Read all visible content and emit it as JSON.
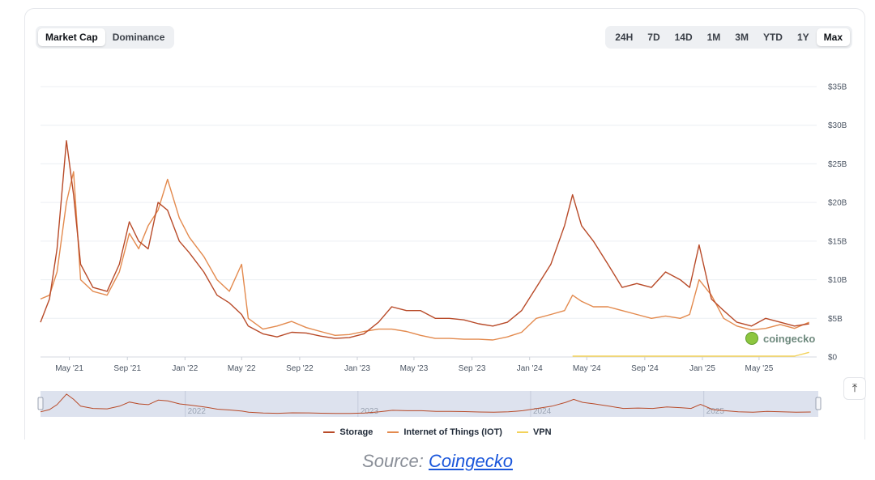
{
  "toggle": {
    "options": [
      "Market Cap",
      "Dominance"
    ],
    "active": "Market Cap"
  },
  "ranges": {
    "options": [
      "24H",
      "7D",
      "14D",
      "1M",
      "3M",
      "YTD",
      "1Y",
      "Max"
    ],
    "active": "Max"
  },
  "watermark": "coingecko",
  "source": {
    "prefix": "Source: ",
    "link": "Coingecko"
  },
  "colors": {
    "storage": "#b84a28",
    "iot": "#e38a4e",
    "vpn": "#f3d25a",
    "grid": "#eceff3",
    "navigator_bg": "#dde2ee"
  },
  "icons": {
    "scroll_top": "arrow-up-to-line-icon",
    "watermark_logo": "gecko-icon"
  },
  "chart_data": {
    "type": "line",
    "title": "",
    "xlabel": "",
    "ylabel": "",
    "ylim": [
      0,
      35
    ],
    "y_unit": "B USD",
    "yticks": [
      "$0",
      "$5B",
      "$10B",
      "$15B",
      "$20B",
      "$25B",
      "$30B",
      "$35B"
    ],
    "xticks": [
      "May '21",
      "Sep '21",
      "Jan '22",
      "May '22",
      "Sep '22",
      "Jan '23",
      "May '23",
      "Sep '23",
      "Jan '24",
      "May '24",
      "Sep '24",
      "Jan '25",
      "May '25"
    ],
    "navigator_years": [
      "2022",
      "2023",
      "2024",
      "2025"
    ],
    "legend_position": "bottom",
    "grid": true,
    "x": [
      "2021-03-01",
      "2021-03-20",
      "2021-04-05",
      "2021-04-25",
      "2021-05-10",
      "2021-05-25",
      "2021-06-20",
      "2021-07-20",
      "2021-08-15",
      "2021-09-05",
      "2021-09-25",
      "2021-10-15",
      "2021-11-05",
      "2021-11-25",
      "2021-12-20",
      "2022-01-10",
      "2022-02-10",
      "2022-03-10",
      "2022-04-05",
      "2022-05-01",
      "2022-05-15",
      "2022-06-15",
      "2022-07-15",
      "2022-08-15",
      "2022-09-15",
      "2022-10-15",
      "2022-11-15",
      "2022-12-15",
      "2023-01-15",
      "2023-02-15",
      "2023-03-15",
      "2023-04-15",
      "2023-05-15",
      "2023-06-15",
      "2023-07-15",
      "2023-08-15",
      "2023-09-15",
      "2023-10-15",
      "2023-11-15",
      "2023-12-15",
      "2024-01-15",
      "2024-02-15",
      "2024-03-15",
      "2024-04-01",
      "2024-04-20",
      "2024-05-15",
      "2024-06-15",
      "2024-07-15",
      "2024-08-15",
      "2024-09-15",
      "2024-10-15",
      "2024-11-15",
      "2024-12-05",
      "2024-12-25",
      "2025-01-20",
      "2025-02-15",
      "2025-03-15",
      "2025-04-15",
      "2025-05-15",
      "2025-06-15",
      "2025-07-15",
      "2025-08-15"
    ],
    "series": [
      {
        "name": "Storage",
        "values": [
          4.5,
          7.5,
          14,
          28,
          21,
          12,
          9,
          8.5,
          12,
          17.5,
          15,
          14,
          20,
          19,
          15,
          13.5,
          11,
          8,
          7,
          5.5,
          4,
          3,
          2.6,
          3.2,
          3.1,
          2.7,
          2.4,
          2.5,
          3,
          4.5,
          6.5,
          6,
          6,
          5,
          5,
          4.8,
          4.3,
          4,
          4.5,
          6,
          9,
          12,
          17,
          21,
          17,
          15,
          12,
          9,
          9.5,
          9,
          11,
          10,
          9,
          14.5,
          7.5,
          6,
          4.5,
          4,
          5,
          4.5,
          4,
          4.3
        ]
      },
      {
        "name": "Internet of Things (IOT)",
        "values": [
          7.5,
          8,
          11,
          20,
          24,
          10,
          8.5,
          8,
          11,
          16,
          14,
          17,
          19,
          23,
          18,
          15.5,
          13,
          10,
          8.5,
          12,
          5,
          3.6,
          4,
          4.6,
          3.8,
          3.3,
          2.8,
          2.9,
          3.3,
          3.6,
          3.6,
          3.3,
          2.8,
          2.4,
          2.4,
          2.3,
          2.3,
          2.2,
          2.6,
          3.2,
          5,
          5.5,
          6,
          8,
          7.2,
          6.5,
          6.5,
          6,
          5.5,
          5,
          5.3,
          5,
          5.5,
          10,
          8,
          5,
          4,
          3.5,
          3.7,
          4.2,
          3.7,
          4.5
        ]
      },
      {
        "name": "VPN",
        "values": [
          null,
          null,
          null,
          null,
          null,
          null,
          null,
          null,
          null,
          null,
          null,
          null,
          null,
          null,
          null,
          null,
          null,
          null,
          null,
          null,
          null,
          null,
          null,
          null,
          null,
          null,
          null,
          null,
          null,
          null,
          null,
          null,
          null,
          null,
          null,
          null,
          null,
          null,
          null,
          null,
          null,
          null,
          null,
          0.1,
          0.1,
          0.1,
          0.1,
          0.1,
          0.1,
          0.1,
          0.1,
          0.1,
          0.1,
          0.1,
          0.1,
          0.1,
          0.1,
          0.1,
          0.1,
          0.1,
          0.1,
          0.6
        ]
      }
    ]
  }
}
